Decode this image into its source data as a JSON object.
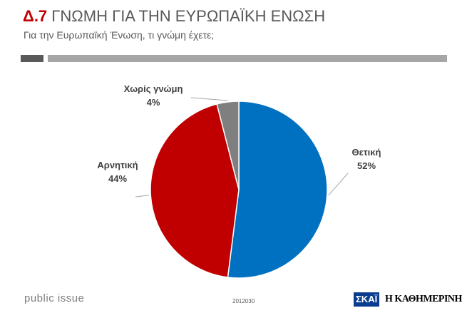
{
  "header": {
    "code": "Δ.7",
    "title": "ΓΝΩΜΗ ΓΙΑ ΤΗΝ ΕΥΡΩΠΑΪΚΗ ΕΝΩΣΗ",
    "subtitle": "Για την Ευρωπαϊκή Ένωση, τι γνώμη έχετε;"
  },
  "colors": {
    "accent_red": "#c00000",
    "divider_dark": "#595959",
    "divider_light": "#a6a6a6",
    "positive": "#0070c0",
    "negative": "#c00000",
    "no_opinion": "#7f7f7f"
  },
  "chart_data": {
    "type": "pie",
    "title": "",
    "slices": [
      {
        "label": "Θετική",
        "value": 52,
        "display": "52%",
        "color": "#0070c0"
      },
      {
        "label": "Αρνητική",
        "value": 44,
        "display": "44%",
        "color": "#c00000"
      },
      {
        "label": "Χωρίς γνώμη",
        "value": 4,
        "display": "4%",
        "color": "#7f7f7f"
      }
    ],
    "start": "12 o'clock",
    "direction": "clockwise"
  },
  "footer": {
    "brand": "public issue",
    "code": "2012030",
    "logo_left": "ΣΚΑΪ",
    "logo_right": "Η ΚΑΘΗΜΕΡΙΝΗ"
  }
}
